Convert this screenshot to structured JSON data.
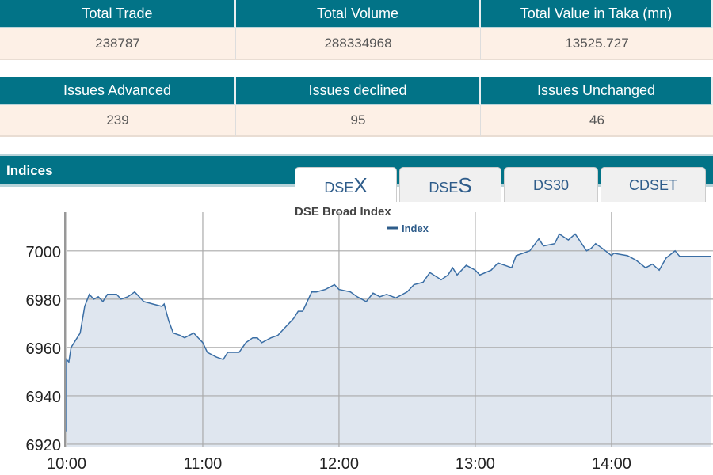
{
  "market_summary": {
    "headers": [
      "Total Trade",
      "Total Volume",
      "Total Value in Taka (mn)"
    ],
    "values": [
      "238787",
      "288334968",
      "13525.727"
    ]
  },
  "issues_summary": {
    "headers": [
      "Issues Advanced",
      "Issues declined",
      "Issues Unchanged"
    ],
    "values": [
      "239",
      "95",
      "46"
    ]
  },
  "indices": {
    "title": "Indices",
    "tabs": [
      {
        "prefix": "DSE",
        "suffix": "X",
        "active": true
      },
      {
        "prefix": "DSE",
        "suffix": "S",
        "active": false
      },
      {
        "prefix": "DS30",
        "suffix": "",
        "active": false
      },
      {
        "prefix": "CDSET",
        "suffix": "",
        "active": false
      }
    ]
  },
  "colors": {
    "header_bg": "#027387",
    "value_bg": "#fdf0e6",
    "line": "#3a6ea5",
    "fill": "#dfe6ef"
  },
  "chart_data": {
    "type": "area",
    "title": "DSE Broad Index",
    "legend": {
      "entries": [
        "Index"
      ],
      "position": "top-center"
    },
    "grid": true,
    "xlabel": "",
    "ylabel": "",
    "xticks": [
      "10:00",
      "11:00",
      "12:00",
      "13:00",
      "14:00"
    ],
    "yticks": [
      6920,
      6940,
      6960,
      6980,
      7000
    ],
    "xlim": [
      "10:00",
      "14:44"
    ],
    "ylim": [
      6919,
      7016
    ],
    "series": [
      {
        "name": "Index",
        "points": [
          [
            "10:00",
            6925
          ],
          [
            "10:00",
            6955
          ],
          [
            "10:01",
            6954
          ],
          [
            "10:02",
            6960
          ],
          [
            "10:04",
            6963
          ],
          [
            "10:06",
            6966
          ],
          [
            "10:08",
            6977
          ],
          [
            "10:10",
            6982
          ],
          [
            "10:12",
            6980
          ],
          [
            "10:14",
            6981
          ],
          [
            "10:16",
            6979
          ],
          [
            "10:18",
            6982
          ],
          [
            "10:22",
            6982
          ],
          [
            "10:24",
            6980
          ],
          [
            "10:27",
            6981
          ],
          [
            "10:30",
            6983
          ],
          [
            "10:34",
            6979
          ],
          [
            "10:38",
            6978
          ],
          [
            "10:42",
            6977
          ],
          [
            "10:43",
            6978
          ],
          [
            "10:45",
            6971
          ],
          [
            "10:47",
            6966
          ],
          [
            "10:50",
            6965
          ],
          [
            "10:52",
            6964
          ],
          [
            "10:56",
            6966
          ],
          [
            "10:58",
            6964
          ],
          [
            "11:00",
            6962
          ],
          [
            "11:02",
            6958
          ],
          [
            "11:06",
            6956
          ],
          [
            "11:09",
            6955
          ],
          [
            "11:11",
            6958
          ],
          [
            "11:16",
            6958
          ],
          [
            "11:19",
            6962
          ],
          [
            "11:22",
            6964
          ],
          [
            "11:24",
            6964
          ],
          [
            "11:26",
            6962
          ],
          [
            "11:30",
            6964
          ],
          [
            "11:33",
            6965
          ],
          [
            "11:35",
            6967
          ],
          [
            "11:37",
            6969
          ],
          [
            "11:40",
            6972
          ],
          [
            "11:42",
            6975
          ],
          [
            "11:44",
            6975
          ],
          [
            "11:48",
            6983
          ],
          [
            "11:50",
            6983
          ],
          [
            "11:54",
            6984
          ],
          [
            "11:58",
            6986
          ],
          [
            "12:00",
            6984
          ],
          [
            "12:05",
            6983
          ],
          [
            "12:08",
            6981
          ],
          [
            "12:12",
            6979
          ],
          [
            "12:15",
            6982.5
          ],
          [
            "12:18",
            6981
          ],
          [
            "12:21",
            6982
          ],
          [
            "12:25",
            6980.5
          ],
          [
            "12:30",
            6983
          ],
          [
            "12:33",
            6986
          ],
          [
            "12:37",
            6987
          ],
          [
            "12:40",
            6991
          ],
          [
            "12:45",
            6988
          ],
          [
            "12:48",
            6990
          ],
          [
            "12:50",
            6993
          ],
          [
            "12:52",
            6990
          ],
          [
            "12:56",
            6994
          ],
          [
            "13:00",
            6992
          ],
          [
            "13:02",
            6990
          ],
          [
            "13:07",
            6992
          ],
          [
            "13:10",
            6995
          ],
          [
            "13:13",
            6994
          ],
          [
            "13:16",
            6993
          ],
          [
            "13:18",
            6998
          ],
          [
            "13:24",
            7000
          ],
          [
            "13:28",
            7005
          ],
          [
            "13:30",
            7002
          ],
          [
            "13:35",
            7003
          ],
          [
            "13:37",
            7007
          ],
          [
            "13:41",
            7004.5
          ],
          [
            "13:44",
            7007
          ],
          [
            "13:49",
            7000
          ],
          [
            "13:51",
            7001
          ],
          [
            "13:53",
            7003
          ],
          [
            "13:56",
            7001
          ],
          [
            "14:00",
            6998
          ],
          [
            "14:01",
            6999
          ],
          [
            "14:07",
            6998
          ],
          [
            "14:11",
            6996
          ],
          [
            "14:15",
            6993
          ],
          [
            "14:18",
            6994.5
          ],
          [
            "14:21",
            6992
          ],
          [
            "14:24",
            6997
          ],
          [
            "14:28",
            7000
          ],
          [
            "14:30",
            6997.7
          ],
          [
            "14:44",
            6997.7
          ]
        ]
      }
    ]
  }
}
